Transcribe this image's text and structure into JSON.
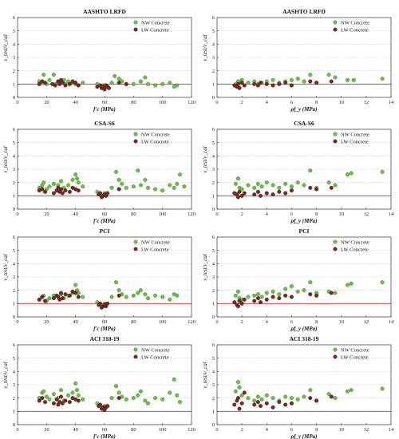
{
  "figure": {
    "legend_nw": "NW Concrete",
    "legend_lw": "LW Concrete",
    "ylabel": "v_test/v_cal",
    "colors": {
      "nw": "#6cc04a",
      "nw_edge": "#2f6e1a",
      "lw": "#7a2a22",
      "lw_edge": "#3a0f0b",
      "ref": "#d42a2a",
      "grid": "#bdbdbd"
    }
  },
  "chart_data": [
    {
      "type": "scatter",
      "title": "AASHTO LRFD",
      "xlabel": "f'c (MPa)",
      "ylabel": "v_test/v_cal",
      "xlim": [
        0,
        120
      ],
      "ylim": [
        0,
        6
      ],
      "xticks": [
        0,
        20,
        40,
        60,
        80,
        100,
        120
      ],
      "yticks": [
        0,
        1,
        2,
        3,
        4,
        5,
        6
      ],
      "grid": "horizontal",
      "legend": "top-right",
      "series": [
        {
          "name": "NW Concrete",
          "x": [
            15,
            16,
            18,
            20,
            22,
            25,
            26,
            28,
            30,
            32,
            33,
            35,
            38,
            40,
            42,
            45,
            55,
            58,
            60,
            62,
            65,
            67,
            70,
            72,
            75,
            80,
            85,
            88,
            90,
            95,
            100,
            105,
            108,
            110
          ],
          "y": [
            1.2,
            1.1,
            1.7,
            1.0,
            1.3,
            1.7,
            1.0,
            1.2,
            1.1,
            1.3,
            1.0,
            1.2,
            1.1,
            1.0,
            0.9,
            1.1,
            1.0,
            0.8,
            0.9,
            0.8,
            1.1,
            1.6,
            1.4,
            1.2,
            1.0,
            1.0,
            1.2,
            1.5,
            1.0,
            0.9,
            1.0,
            1.1,
            0.8,
            0.9
          ]
        },
        {
          "name": "LW Concrete",
          "x": [
            15,
            17,
            19,
            24,
            26,
            28,
            29,
            30,
            31,
            33,
            36,
            38,
            40,
            42,
            55,
            57,
            58,
            59,
            60,
            61,
            62,
            63,
            70,
            75
          ],
          "y": [
            1.0,
            1.2,
            1.1,
            1.0,
            0.9,
            1.2,
            1.0,
            1.3,
            1.1,
            0.9,
            1.0,
            1.2,
            1.1,
            0.9,
            0.8,
            0.9,
            0.7,
            0.8,
            0.6,
            0.9,
            0.8,
            0.7,
            1.1,
            1.0
          ]
        }
      ]
    },
    {
      "type": "scatter",
      "title": "AASHTO LRFD",
      "xlabel": "ρf_y (MPa)",
      "ylabel": "v_test/v_cal",
      "xlim": [
        0,
        14
      ],
      "ylim": [
        0,
        6
      ],
      "xticks": [
        0,
        2,
        4,
        6,
        8,
        10,
        12,
        14
      ],
      "yticks": [
        0,
        1,
        2,
        3,
        4,
        5,
        6
      ],
      "grid": "horizontal",
      "legend": "top-right",
      "series": [
        {
          "name": "NW Concrete",
          "x": [
            1.5,
            1.7,
            2.0,
            2.5,
            3.0,
            3.3,
            3.6,
            4.0,
            4.5,
            5.0,
            5.5,
            6.0,
            6.5,
            7.0,
            7.5,
            8.0,
            9.0,
            9.5,
            10.5,
            11.0,
            13.3
          ],
          "y": [
            1.0,
            1.2,
            1.3,
            1.1,
            1.2,
            1.0,
            1.1,
            1.2,
            1.3,
            1.1,
            1.2,
            1.3,
            1.4,
            1.2,
            1.7,
            1.1,
            1.7,
            1.5,
            1.3,
            1.3,
            1.4
          ]
        },
        {
          "name": "LW Concrete",
          "x": [
            1.4,
            1.6,
            1.7,
            1.8,
            2.0,
            2.2,
            3.0,
            3.3,
            3.5,
            4.0,
            4.5,
            5.0,
            5.5,
            6.0,
            7.5,
            8.0,
            9.2
          ],
          "y": [
            0.9,
            0.8,
            1.0,
            0.7,
            1.1,
            0.9,
            1.0,
            0.9,
            1.1,
            1.0,
            0.9,
            1.0,
            1.1,
            0.9,
            1.2,
            1.1,
            1.2
          ]
        }
      ]
    },
    {
      "type": "scatter",
      "title": "CSA-S6",
      "xlabel": "f'c (MPa)",
      "ylabel": "v_test/v_cal",
      "xlim": [
        0,
        120
      ],
      "ylim": [
        0,
        6
      ],
      "xticks": [
        0,
        20,
        40,
        60,
        80,
        100,
        120
      ],
      "yticks": [
        0,
        1,
        2,
        3,
        4,
        5,
        6
      ],
      "grid": "horizontal",
      "legend": "top-right",
      "series": [
        {
          "name": "NW Concrete",
          "x": [
            15,
            17,
            18,
            20,
            22,
            25,
            28,
            30,
            32,
            35,
            38,
            40,
            41,
            42,
            45,
            55,
            60,
            65,
            68,
            70,
            72,
            75,
            80,
            83,
            85,
            88,
            90,
            95,
            100,
            105,
            108,
            110,
            112,
            115
          ],
          "y": [
            1.6,
            1.8,
            2.0,
            1.5,
            1.7,
            1.9,
            1.8,
            2.1,
            1.6,
            1.8,
            2.2,
            2.6,
            2.3,
            2.0,
            1.7,
            1.3,
            1.2,
            1.6,
            2.8,
            2.2,
            1.9,
            1.6,
            1.7,
            2.9,
            1.8,
            2.2,
            1.6,
            1.5,
            1.4,
            1.8,
            1.6,
            1.9,
            2.6,
            1.7
          ]
        },
        {
          "name": "LW Concrete",
          "x": [
            15,
            17,
            19,
            25,
            27,
            28,
            29,
            30,
            31,
            33,
            36,
            38,
            40,
            42,
            56,
            57,
            58,
            59,
            60,
            61,
            62,
            70
          ],
          "y": [
            1.4,
            1.5,
            1.3,
            1.2,
            1.4,
            1.6,
            1.3,
            1.5,
            1.2,
            1.4,
            1.3,
            1.6,
            1.5,
            1.4,
            1.1,
            1.2,
            0.9,
            1.0,
            1.1,
            1.0,
            1.2,
            1.5
          ]
        }
      ]
    },
    {
      "type": "scatter",
      "title": "CSA-S6",
      "xlabel": "ρf_y (MPa)",
      "ylabel": "v_test/v_cal",
      "xlim": [
        0,
        14
      ],
      "ylim": [
        0,
        6
      ],
      "xticks": [
        0,
        2,
        4,
        6,
        8,
        10,
        12,
        14
      ],
      "yticks": [
        0,
        1,
        2,
        3,
        4,
        5,
        6
      ],
      "grid": "horizontal",
      "legend": "top-right",
      "series": [
        {
          "name": "NW Concrete",
          "x": [
            1.5,
            1.7,
            1.8,
            2.0,
            2.5,
            3.0,
            3.3,
            3.6,
            4.0,
            4.5,
            5.0,
            5.5,
            6.0,
            6.5,
            7.0,
            7.5,
            8.0,
            9.0,
            9.5,
            10.5,
            10.8,
            13.3
          ],
          "y": [
            1.9,
            2.3,
            1.6,
            1.5,
            1.8,
            1.6,
            1.9,
            1.7,
            2.0,
            1.8,
            1.6,
            1.9,
            1.7,
            2.0,
            1.8,
            2.9,
            1.6,
            2.0,
            1.8,
            2.6,
            2.7,
            2.8
          ]
        },
        {
          "name": "LW Concrete",
          "x": [
            1.4,
            1.6,
            1.7,
            1.8,
            2.0,
            2.2,
            3.0,
            3.3,
            3.5,
            4.0,
            4.5,
            5.0,
            5.5,
            6.0,
            7.5,
            8.0,
            9.2
          ],
          "y": [
            1.2,
            1.1,
            0.9,
            1.3,
            1.0,
            1.2,
            1.1,
            1.3,
            1.0,
            1.2,
            1.1,
            1.3,
            1.2,
            1.4,
            1.6,
            1.5,
            1.6
          ]
        }
      ]
    },
    {
      "type": "scatter",
      "title": "PCI",
      "xlabel": "f'c (MPa)",
      "ylabel": "v_test/v_cal",
      "xlim": [
        0,
        120
      ],
      "ylim": [
        0,
        6
      ],
      "xticks": [
        0,
        20,
        40,
        60,
        80,
        100,
        120
      ],
      "yticks": [
        0,
        1,
        2,
        3,
        4,
        5,
        6
      ],
      "grid": "horizontal",
      "legend": "top-right",
      "series": [
        {
          "name": "NW Concrete",
          "x": [
            15,
            17,
            18,
            20,
            22,
            25,
            28,
            30,
            32,
            35,
            38,
            40,
            41,
            42,
            45,
            55,
            60,
            65,
            68,
            70,
            72,
            75,
            80,
            83,
            85,
            88,
            90,
            95,
            100,
            105,
            108,
            110
          ],
          "y": [
            1.3,
            1.5,
            1.6,
            1.2,
            1.4,
            1.6,
            1.5,
            1.7,
            1.4,
            1.6,
            1.8,
            2.4,
            2.0,
            1.8,
            1.5,
            1.1,
            1.0,
            1.5,
            2.6,
            2.0,
            1.7,
            1.5,
            1.6,
            1.8,
            2.0,
            1.7,
            1.4,
            1.6,
            1.5,
            1.3,
            1.7,
            1.6
          ]
        },
        {
          "name": "LW Concrete",
          "x": [
            15,
            17,
            19,
            25,
            27,
            28,
            29,
            30,
            31,
            33,
            36,
            38,
            40,
            42,
            56,
            57,
            58,
            59,
            60,
            61,
            62,
            70
          ],
          "y": [
            1.3,
            1.5,
            1.2,
            1.4,
            1.6,
            1.5,
            1.3,
            1.8,
            1.4,
            1.7,
            1.6,
            1.9,
            1.8,
            1.5,
            0.9,
            1.0,
            0.7,
            0.8,
            0.9,
            0.8,
            1.0,
            1.6
          ]
        }
      ]
    },
    {
      "type": "scatter",
      "title": "PCI",
      "xlabel": "ρf_y (MPa)",
      "ylabel": "v_test/v_cal",
      "xlim": [
        0,
        14
      ],
      "ylim": [
        0,
        6
      ],
      "xticks": [
        0,
        2,
        4,
        6,
        8,
        10,
        12,
        14
      ],
      "yticks": [
        0,
        1,
        2,
        3,
        4,
        5,
        6
      ],
      "grid": "horizontal",
      "legend": "top-right",
      "series": [
        {
          "name": "NW Concrete",
          "x": [
            1.5,
            1.7,
            1.8,
            2.0,
            2.5,
            3.0,
            3.3,
            3.6,
            4.0,
            4.5,
            5.0,
            5.5,
            6.0,
            6.5,
            7.0,
            7.5,
            8.0,
            9.0,
            9.5,
            10.5,
            10.8,
            13.3
          ],
          "y": [
            1.6,
            1.9,
            1.4,
            1.3,
            1.5,
            1.6,
            1.7,
            1.5,
            1.8,
            1.9,
            1.7,
            2.1,
            2.3,
            1.9,
            2.0,
            2.6,
            1.8,
            1.9,
            1.8,
            2.4,
            2.5,
            2.6
          ]
        },
        {
          "name": "LW Concrete",
          "x": [
            1.4,
            1.6,
            1.7,
            1.8,
            2.0,
            2.2,
            3.0,
            3.3,
            3.5,
            4.0,
            4.5,
            5.0,
            5.5,
            6.0,
            7.5,
            8.0,
            9.2
          ],
          "y": [
            1.1,
            0.9,
            0.8,
            1.2,
            1.0,
            1.3,
            1.2,
            1.4,
            1.1,
            1.3,
            1.5,
            1.4,
            1.6,
            1.5,
            1.7,
            1.6,
            1.8
          ]
        }
      ]
    },
    {
      "type": "scatter",
      "title": "ACI 318-19",
      "xlabel": "f'c (MPa)",
      "ylabel": "v_test/v_cal",
      "xlim": [
        0,
        120
      ],
      "ylim": [
        0,
        6
      ],
      "xticks": [
        0,
        20,
        40,
        60,
        80,
        100,
        120
      ],
      "yticks": [
        0,
        1,
        2,
        3,
        4,
        5,
        6
      ],
      "grid": "horizontal",
      "legend": "top-right",
      "series": [
        {
          "name": "NW Concrete",
          "x": [
            15,
            17,
            18,
            20,
            22,
            25,
            28,
            30,
            32,
            35,
            38,
            40,
            41,
            42,
            45,
            55,
            60,
            65,
            68,
            70,
            72,
            75,
            80,
            83,
            85,
            88,
            90,
            95,
            100,
            105,
            108,
            110,
            112
          ],
          "y": [
            2.0,
            2.4,
            2.5,
            2.1,
            1.9,
            2.3,
            2.0,
            2.6,
            1.8,
            2.2,
            2.4,
            3.1,
            2.6,
            2.2,
            1.9,
            1.6,
            1.4,
            2.0,
            2.9,
            2.4,
            2.1,
            1.9,
            2.0,
            2.2,
            2.5,
            1.8,
            1.6,
            2.0,
            1.9,
            2.4,
            3.4,
            2.2,
            1.7
          ]
        },
        {
          "name": "LW Concrete",
          "x": [
            15,
            17,
            19,
            25,
            27,
            28,
            29,
            30,
            31,
            33,
            36,
            38,
            40,
            42,
            56,
            57,
            58,
            59,
            60,
            61,
            62,
            70
          ],
          "y": [
            1.8,
            2.0,
            1.7,
            1.6,
            1.9,
            1.5,
            1.7,
            2.1,
            1.6,
            1.8,
            1.7,
            2.0,
            1.9,
            1.8,
            1.4,
            1.5,
            1.2,
            1.3,
            1.1,
            1.3,
            1.4,
            2.0
          ]
        }
      ]
    },
    {
      "type": "scatter",
      "title": "ACI 318-19",
      "xlabel": "ρf_y (MPa)",
      "ylabel": "v_test/v_cal",
      "xlim": [
        0,
        14
      ],
      "ylim": [
        0,
        6
      ],
      "xticks": [
        0,
        2,
        4,
        6,
        8,
        10,
        12,
        14
      ],
      "yticks": [
        0,
        1,
        2,
        3,
        4,
        5,
        6
      ],
      "grid": "horizontal",
      "legend": "top-right",
      "series": [
        {
          "name": "NW Concrete",
          "x": [
            1.5,
            1.7,
            1.8,
            2.0,
            2.5,
            3.0,
            3.3,
            3.6,
            4.0,
            4.5,
            5.0,
            5.5,
            6.0,
            6.5,
            7.0,
            7.5,
            8.0,
            9.0,
            9.5,
            10.5,
            10.8,
            13.3
          ],
          "y": [
            2.5,
            3.2,
            2.8,
            2.2,
            2.0,
            1.8,
            2.1,
            1.9,
            2.2,
            2.0,
            1.8,
            2.1,
            2.0,
            1.9,
            2.1,
            2.6,
            1.8,
            2.3,
            2.0,
            2.5,
            2.6,
            2.7
          ]
        },
        {
          "name": "LW Concrete",
          "x": [
            1.4,
            1.6,
            1.7,
            1.8,
            2.0,
            2.2,
            3.0,
            3.3,
            3.5,
            4.0,
            4.5,
            5.0,
            5.5,
            6.0,
            7.5,
            8.0,
            9.2
          ],
          "y": [
            1.5,
            1.8,
            2.0,
            1.2,
            1.6,
            2.4,
            1.5,
            1.7,
            1.4,
            1.6,
            1.3,
            1.7,
            1.5,
            1.6,
            2.0,
            1.8,
            2.1
          ]
        }
      ]
    }
  ]
}
